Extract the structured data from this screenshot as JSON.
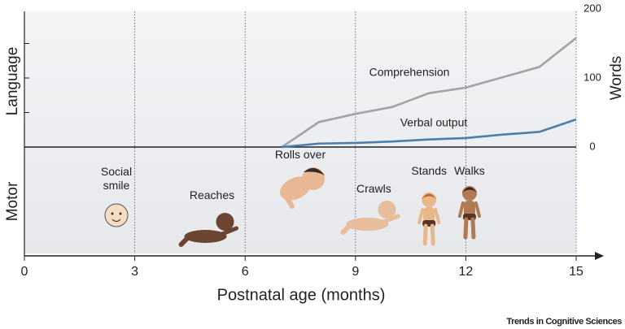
{
  "chart_data": {
    "type": "line",
    "y_label_top": "Language",
    "y_label_bottom": "Motor",
    "x_label": "Postnatal age (months)",
    "y2_label": "Words",
    "x": [
      7,
      8,
      9,
      10,
      11,
      12,
      13,
      14,
      15
    ],
    "series": [
      {
        "name": "Comprehension",
        "color": "#a3a3a3",
        "axis": "y2",
        "values": [
          0,
          36,
          48,
          58,
          78,
          86,
          101,
          116,
          158
        ]
      },
      {
        "name": "Verbal output",
        "color": "#4c7fae",
        "axis": "y2",
        "values": [
          0,
          5,
          6,
          8,
          11,
          13,
          18,
          22,
          40
        ]
      }
    ],
    "xlim": [
      0,
      15
    ],
    "xticks": [
      0,
      3,
      6,
      9,
      12,
      15
    ],
    "y2lim": [
      0,
      200
    ],
    "y2ticks": [
      0,
      100,
      200
    ],
    "minor_yticks": [
      50,
      100,
      150
    ],
    "grid": true,
    "milestones": [
      {
        "label": "Social smile",
        "x": 2.5
      },
      {
        "label": "Reaches",
        "x": 5.1
      },
      {
        "label": "Rolls over",
        "x": 7.5
      },
      {
        "label": "Crawls",
        "x": 9.5
      },
      {
        "label": "Stands",
        "x": 11
      },
      {
        "label": "Walks",
        "x": 12.1
      }
    ],
    "credit": "Trends in Cognitive Sciences"
  }
}
